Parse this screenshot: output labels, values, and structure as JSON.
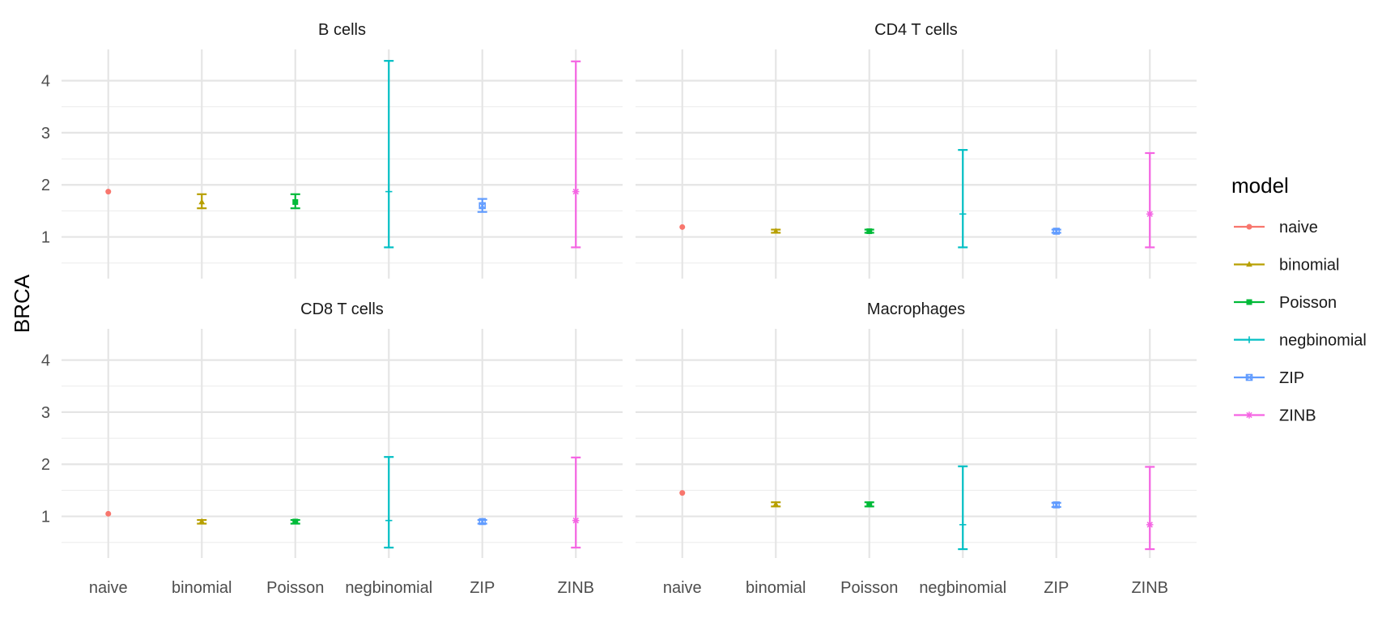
{
  "chart_data": {
    "type": "scatter",
    "ylabel": "BRCA",
    "xlabel": "",
    "categories": [
      "naive",
      "binomial",
      "Poisson",
      "negbinomial",
      "ZIP",
      "ZINB"
    ],
    "ylim": [
      0.2,
      4.6
    ],
    "yticks": [
      1,
      2,
      3,
      4
    ],
    "grid": true,
    "legend": {
      "title": "model",
      "placement": "right",
      "entries": [
        {
          "name": "naive",
          "color": "#F8766D",
          "shape": "circle"
        },
        {
          "name": "binomial",
          "color": "#B79F00",
          "shape": "triangle"
        },
        {
          "name": "Poisson",
          "color": "#00BA38",
          "shape": "square"
        },
        {
          "name": "negbinomial",
          "color": "#00BFC4",
          "shape": "plus"
        },
        {
          "name": "ZIP",
          "color": "#619CFF",
          "shape": "square-cross"
        },
        {
          "name": "ZINB",
          "color": "#F564E3",
          "shape": "asterisk"
        }
      ]
    },
    "panels": [
      {
        "title": "B cells",
        "points": [
          {
            "model": "naive",
            "value": 1.87
          },
          {
            "model": "binomial",
            "value": 1.67,
            "lower": 1.55,
            "upper": 1.82
          },
          {
            "model": "Poisson",
            "value": 1.67,
            "lower": 1.55,
            "upper": 1.82
          },
          {
            "model": "negbinomial",
            "value": 1.87,
            "lower": 0.8,
            "upper": 4.38
          },
          {
            "model": "ZIP",
            "value": 1.6,
            "lower": 1.48,
            "upper": 1.73
          },
          {
            "model": "ZINB",
            "value": 1.87,
            "lower": 0.8,
            "upper": 4.37
          }
        ]
      },
      {
        "title": "CD4 T cells",
        "points": [
          {
            "model": "naive",
            "value": 1.19
          },
          {
            "model": "binomial",
            "value": 1.11,
            "lower": 1.08,
            "upper": 1.14
          },
          {
            "model": "Poisson",
            "value": 1.11,
            "lower": 1.08,
            "upper": 1.14
          },
          {
            "model": "negbinomial",
            "value": 1.44,
            "lower": 0.8,
            "upper": 2.67
          },
          {
            "model": "ZIP",
            "value": 1.11,
            "lower": 1.08,
            "upper": 1.14
          },
          {
            "model": "ZINB",
            "value": 1.44,
            "lower": 0.8,
            "upper": 2.61
          }
        ]
      },
      {
        "title": "CD8 T cells",
        "points": [
          {
            "model": "naive",
            "value": 1.05
          },
          {
            "model": "binomial",
            "value": 0.9,
            "lower": 0.86,
            "upper": 0.93
          },
          {
            "model": "Poisson",
            "value": 0.9,
            "lower": 0.86,
            "upper": 0.93
          },
          {
            "model": "negbinomial",
            "value": 0.92,
            "lower": 0.4,
            "upper": 2.14
          },
          {
            "model": "ZIP",
            "value": 0.9,
            "lower": 0.86,
            "upper": 0.93
          },
          {
            "model": "ZINB",
            "value": 0.92,
            "lower": 0.4,
            "upper": 2.13
          }
        ]
      },
      {
        "title": "Macrophages",
        "points": [
          {
            "model": "naive",
            "value": 1.45
          },
          {
            "model": "binomial",
            "value": 1.23,
            "lower": 1.19,
            "upper": 1.27
          },
          {
            "model": "Poisson",
            "value": 1.23,
            "lower": 1.19,
            "upper": 1.27
          },
          {
            "model": "negbinomial",
            "value": 0.84,
            "lower": 0.37,
            "upper": 1.96
          },
          {
            "model": "ZIP",
            "value": 1.22,
            "lower": 1.18,
            "upper": 1.26
          },
          {
            "model": "ZINB",
            "value": 0.84,
            "lower": 0.37,
            "upper": 1.95
          }
        ]
      }
    ]
  }
}
